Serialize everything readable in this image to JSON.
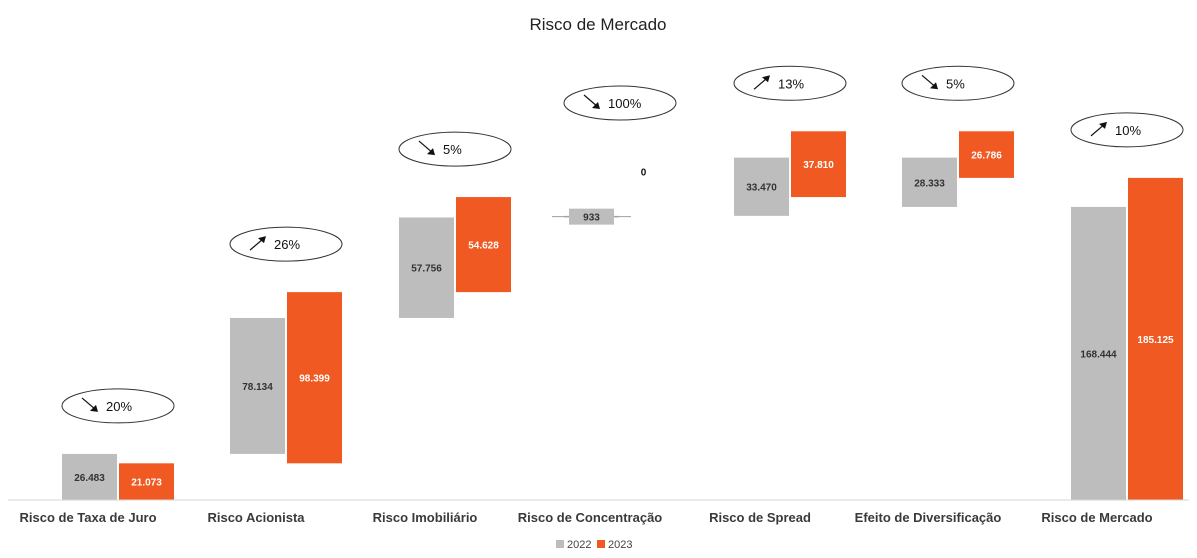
{
  "chart_data": {
    "type": "bar",
    "subtype": "waterfall",
    "title": "Risco de Mercado",
    "categories": [
      "Risco de Taxa de Juro",
      "Risco Acionista",
      "Risco Imobiliário",
      "Risco de Concentração",
      "Risco de Spread",
      "Efeito de Diversificação",
      "Risco de Mercado"
    ],
    "series": [
      {
        "name": "2022",
        "color": "#bdbdbd",
        "values": [
          26483,
          78134,
          57756,
          933,
          33470,
          28333,
          168444
        ],
        "labels": [
          "26.483",
          "78.134",
          "57.756",
          "933",
          "33.470",
          "28.333",
          "168.444"
        ]
      },
      {
        "name": "2023",
        "color": "#f05a22",
        "values": [
          21073,
          98399,
          54628,
          0,
          37810,
          26786,
          185125
        ],
        "labels": [
          "21.073",
          "98.399",
          "54.628",
          "0",
          "37.810",
          "26.786",
          "185.125"
        ]
      }
    ],
    "changes": [
      {
        "direction": "down",
        "text": "20%"
      },
      {
        "direction": "up",
        "text": "26%"
      },
      {
        "direction": "down",
        "text": "5%"
      },
      {
        "direction": "down",
        "text": "100%"
      },
      {
        "direction": "up",
        "text": "13%"
      },
      {
        "direction": "down",
        "text": "5%"
      },
      {
        "direction": "up",
        "text": "10%"
      }
    ],
    "ylim": [
      0,
      230000
    ],
    "grid": false,
    "legend": "bottom"
  }
}
